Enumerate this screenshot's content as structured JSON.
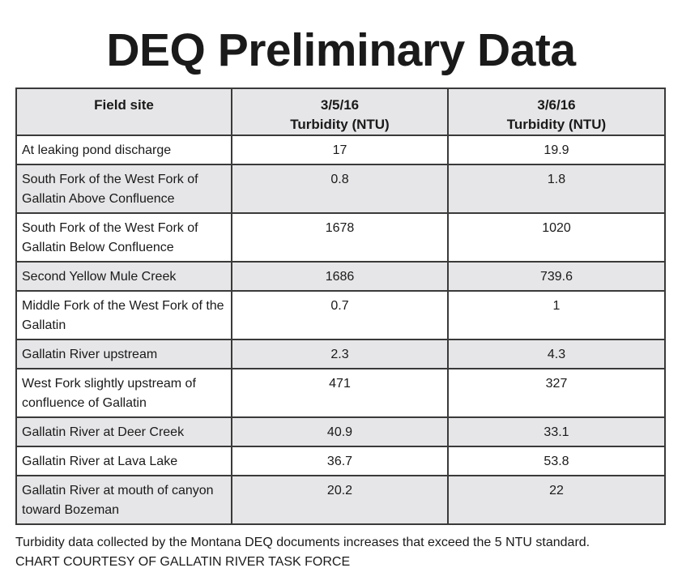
{
  "chart_data": {
    "type": "table",
    "title": "DEQ Preliminary Data",
    "columns": [
      {
        "line1": "Field site",
        "line2": ""
      },
      {
        "line1": "3/5/16",
        "line2": "Turbidity (NTU)"
      },
      {
        "line1": "3/6/16",
        "line2": "Turbidity (NTU)"
      }
    ],
    "rows": [
      {
        "site": "At leaking pond discharge",
        "v1": "17",
        "v2": "19.9"
      },
      {
        "site": "South Fork of the West Fork of Gallatin Above Confluence",
        "v1": "0.8",
        "v2": "1.8"
      },
      {
        "site": "South Fork of the West Fork of Gallatin Below Confluence",
        "v1": "1678",
        "v2": "1020"
      },
      {
        "site": "Second Yellow Mule Creek",
        "v1": "1686",
        "v2": "739.6"
      },
      {
        "site": "Middle Fork of the West Fork of the Gallatin",
        "v1": "0.7",
        "v2": "1"
      },
      {
        "site": "Gallatin River upstream",
        "v1": "2.3",
        "v2": "4.3"
      },
      {
        "site": "West Fork slightly upstream of confluence of Gallatin",
        "v1": "471",
        "v2": "327"
      },
      {
        "site": "Gallatin River at Deer Creek",
        "v1": "40.9",
        "v2": "33.1"
      },
      {
        "site": "Gallatin River at Lava Lake",
        "v1": "36.7",
        "v2": "53.8"
      },
      {
        "site": "Gallatin River at mouth of canyon toward Bozeman",
        "v1": "20.2",
        "v2": "22"
      }
    ],
    "colors": {
      "header_background": "#e6e6e8",
      "shaded_row_background": "#e6e6e8",
      "plain_row_background": "#ffffff",
      "border": "#3a3a3a"
    }
  },
  "caption": {
    "note": "Turbidity data collected by the Montana DEQ documents increases that exceed the 5 NTU standard.",
    "credit": "CHART COURTESY OF GALLATIN RIVER TASK FORCE"
  }
}
